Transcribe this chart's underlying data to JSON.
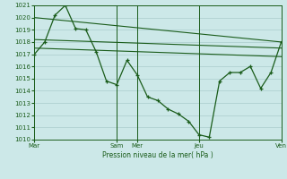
{
  "bg_color": "#cce8e8",
  "grid_color": "#aacccc",
  "line_color": "#1a5c1a",
  "xlabel": "Pression niveau de la mer( hPa )",
  "ylim": [
    1010,
    1021
  ],
  "xlim": [
    0,
    288
  ],
  "xtick_positions": [
    0,
    96,
    120,
    192,
    288
  ],
  "xtick_labels": [
    "Mar",
    "Sam",
    "Mer",
    "Jeu",
    "Ven"
  ],
  "upper_line_x": [
    0,
    288
  ],
  "upper_line_y": [
    1020.0,
    1018.0
  ],
  "mid_line1_x": [
    0,
    288
  ],
  "mid_line1_y": [
    1018.2,
    1017.5
  ],
  "mid_line2_x": [
    0,
    288
  ],
  "mid_line2_y": [
    1017.5,
    1016.8
  ],
  "main_x": [
    0,
    12,
    24,
    36,
    48,
    60,
    72,
    84,
    96,
    108,
    120,
    132,
    144,
    156,
    168,
    180,
    192,
    204,
    216,
    228,
    240,
    252,
    264,
    276,
    288
  ],
  "main_y": [
    1017.0,
    1018.0,
    1020.2,
    1021.0,
    1019.1,
    1019.0,
    1017.2,
    1014.8,
    1014.5,
    1016.5,
    1015.3,
    1013.5,
    1013.2,
    1012.5,
    1012.1,
    1011.5,
    1010.4,
    1010.2,
    1014.8,
    1015.5,
    1015.5,
    1016.0,
    1014.2,
    1015.5,
    1018.0
  ]
}
